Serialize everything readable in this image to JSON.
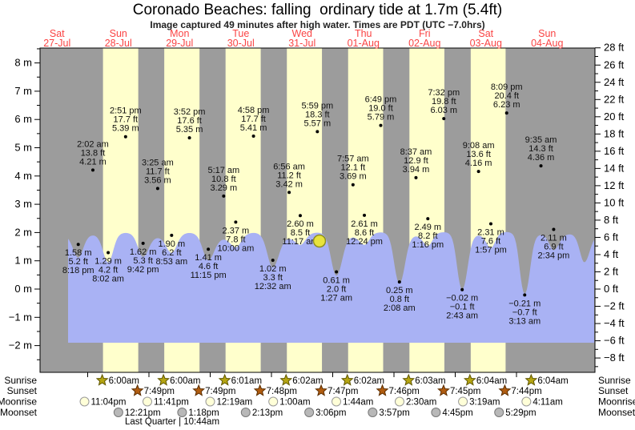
{
  "title": "Coronado Beaches: falling  ordinary tide at 1.7m (5.4ft)",
  "subtitle": "Image captured 49 minutes after high water. Times are PDT (UTC −7.0hrs)",
  "colors": {
    "band_night": "#9c9c9c",
    "band_day": "#ffffcc",
    "sea": "#a9b2f4",
    "current_marker_fill": "#e8e33c",
    "current_marker_stroke": "#8f8f1e",
    "day_label": "#fa4444",
    "axis_text": "#000000",
    "point_label_text": "#111111",
    "sunrise_star": "#b5a512",
    "sunset_star": "#b05c10",
    "moonrise_fill": "#ffffd8",
    "moonrise_stroke": "#9a9a9a",
    "moonset_fill": "#b8b8b8",
    "moonset_stroke": "#787878"
  },
  "chart_data": {
    "type": "area",
    "title": "Coronado Beaches tide heights",
    "ylabel_left": "meters",
    "ylabel_right": "feet",
    "ylim_m": [
      -2.95,
      8.5
    ],
    "y_axis_left_ticks": [
      "8 m",
      "7 m",
      "6 m",
      "5 m",
      "4 m",
      "3 m",
      "2 m",
      "1 m",
      "0 m",
      "−1 m",
      "−2 m"
    ],
    "y_axis_left_values": [
      8,
      7,
      6,
      5,
      4,
      3,
      2,
      1,
      0,
      -1,
      -2
    ],
    "y_axis_right_ticks": [
      "28 ft",
      "26 ft",
      "24 ft",
      "22 ft",
      "20 ft",
      "18 ft",
      "16 ft",
      "14 ft",
      "12 ft",
      "10 ft",
      "8 ft",
      "6 ft",
      "4 ft",
      "2 ft",
      "0 ft",
      "−2 ft",
      "−4 ft",
      "−6 ft",
      "−8 ft"
    ],
    "y_axis_right_values": [
      28,
      26,
      24,
      22,
      20,
      18,
      16,
      14,
      12,
      10,
      8,
      6,
      4,
      2,
      0,
      -2,
      -4,
      -6,
      -8
    ],
    "days": [
      {
        "weekday": "Sat",
        "date": "27-Jul"
      },
      {
        "weekday": "Sun",
        "date": "28-Jul"
      },
      {
        "weekday": "Mon",
        "date": "29-Jul"
      },
      {
        "weekday": "Tue",
        "date": "30-Jul"
      },
      {
        "weekday": "Wed",
        "date": "31-Jul"
      },
      {
        "weekday": "Thu",
        "date": "01-Aug"
      },
      {
        "weekday": "Fri",
        "date": "02-Aug"
      },
      {
        "weekday": "Sat",
        "date": "03-Aug"
      },
      {
        "weekday": "Sun",
        "date": "04-Aug"
      }
    ],
    "extremes": [
      {
        "day": 0,
        "hour": 20.3,
        "type": "low",
        "m": 1.58,
        "ft": 5.2,
        "time": "8:18 pm"
      },
      {
        "day": 1,
        "hour": 2.033,
        "type": "high",
        "m": 4.21,
        "ft": 13.8,
        "time": "2:02 am"
      },
      {
        "day": 1,
        "hour": 8.033,
        "type": "low",
        "m": 1.29,
        "ft": 4.2,
        "time": "8:02 am"
      },
      {
        "day": 1,
        "hour": 14.85,
        "type": "high",
        "m": 5.39,
        "ft": 17.7,
        "time": "2:51 pm"
      },
      {
        "day": 1,
        "hour": 21.7,
        "type": "low",
        "m": 1.62,
        "ft": 5.3,
        "time": "9:42 pm"
      },
      {
        "day": 2,
        "hour": 3.417,
        "type": "high",
        "m": 3.56,
        "ft": 11.7,
        "time": "3:25 am"
      },
      {
        "day": 2,
        "hour": 8.883,
        "type": "low",
        "m": 1.9,
        "ft": 6.2,
        "time": "8:53 am"
      },
      {
        "day": 2,
        "hour": 15.867,
        "type": "high",
        "m": 5.35,
        "ft": 17.6,
        "time": "3:52 pm"
      },
      {
        "day": 2,
        "hour": 23.25,
        "type": "low",
        "m": 1.41,
        "ft": 4.6,
        "time": "11:15 pm"
      },
      {
        "day": 3,
        "hour": 5.283,
        "type": "high",
        "m": 3.29,
        "ft": 10.8,
        "time": "5:17 am"
      },
      {
        "day": 3,
        "hour": 10.0,
        "type": "low",
        "m": 2.37,
        "ft": 7.8,
        "time": "10:00 am"
      },
      {
        "day": 3,
        "hour": 16.967,
        "type": "high",
        "m": 5.41,
        "ft": 17.7,
        "time": "4:58 pm"
      },
      {
        "day": 4,
        "hour": 0.533,
        "type": "low",
        "m": 1.02,
        "ft": 3.3,
        "time": "12:32 am"
      },
      {
        "day": 4,
        "hour": 6.933,
        "type": "high",
        "m": 3.42,
        "ft": 11.2,
        "time": "6:56 am"
      },
      {
        "day": 4,
        "hour": 11.283,
        "type": "low",
        "m": 2.6,
        "ft": 8.5,
        "time": "11:17 am"
      },
      {
        "day": 4,
        "hour": 17.983,
        "type": "high",
        "m": 5.57,
        "ft": 18.3,
        "time": "5:59 pm"
      },
      {
        "day": 5,
        "hour": 1.45,
        "type": "low",
        "m": 0.61,
        "ft": 2.0,
        "time": "1:27 am"
      },
      {
        "day": 5,
        "hour": 7.95,
        "type": "high",
        "m": 3.69,
        "ft": 12.1,
        "time": "7:57 am"
      },
      {
        "day": 5,
        "hour": 12.4,
        "type": "low",
        "m": 2.61,
        "ft": 8.6,
        "time": "12:24 pm"
      },
      {
        "day": 5,
        "hour": 18.817,
        "type": "high",
        "m": 5.79,
        "ft": 19.0,
        "time": "6:49 pm"
      },
      {
        "day": 6,
        "hour": 2.133,
        "type": "low",
        "m": 0.25,
        "ft": 0.8,
        "time": "2:08 am"
      },
      {
        "day": 6,
        "hour": 8.617,
        "type": "high",
        "m": 3.94,
        "ft": 12.9,
        "time": "8:37 am"
      },
      {
        "day": 6,
        "hour": 13.267,
        "type": "low",
        "m": 2.49,
        "ft": 8.2,
        "time": "1:16 pm"
      },
      {
        "day": 6,
        "hour": 19.533,
        "type": "high",
        "m": 6.03,
        "ft": 19.8,
        "time": "7:32 pm"
      },
      {
        "day": 7,
        "hour": 2.717,
        "type": "low",
        "m": -0.02,
        "ft": -0.1,
        "time": "2:43 am"
      },
      {
        "day": 7,
        "hour": 9.133,
        "type": "high",
        "m": 4.16,
        "ft": 13.6,
        "time": "9:08 am"
      },
      {
        "day": 7,
        "hour": 13.95,
        "type": "low",
        "m": 2.31,
        "ft": 7.6,
        "time": "1:57 pm"
      },
      {
        "day": 7,
        "hour": 20.15,
        "type": "high",
        "m": 6.23,
        "ft": 20.4,
        "time": "8:09 pm"
      },
      {
        "day": 8,
        "hour": 3.217,
        "type": "low",
        "m": -0.21,
        "ft": -0.7,
        "time": "3:13 am"
      },
      {
        "day": 8,
        "hour": 9.583,
        "type": "high",
        "m": 4.36,
        "ft": 14.3,
        "time": "9:35 am"
      },
      {
        "day": 8,
        "hour": 14.567,
        "type": "low",
        "m": 2.11,
        "ft": 6.9,
        "time": "2:34 pm"
      }
    ],
    "current_position": {
      "day": 4,
      "hour": 18.817,
      "height_m": 1.7,
      "height_ft": 5.4,
      "state": "falling"
    },
    "sun_moon_rows": [
      {
        "label": "Sunrise",
        "icon": "sunrise-star",
        "events": [
          {
            "day": 1,
            "hour": 6.0,
            "time": "6:00am"
          },
          {
            "day": 2,
            "hour": 6.0,
            "time": "6:00am"
          },
          {
            "day": 3,
            "hour": 6.017,
            "time": "6:01am"
          },
          {
            "day": 4,
            "hour": 6.033,
            "time": "6:02am"
          },
          {
            "day": 5,
            "hour": 6.033,
            "time": "6:02am"
          },
          {
            "day": 6,
            "hour": 6.05,
            "time": "6:03am"
          },
          {
            "day": 7,
            "hour": 6.067,
            "time": "6:04am"
          },
          {
            "day": 8,
            "hour": 6.067,
            "time": "6:04am"
          }
        ]
      },
      {
        "label": "Sunset",
        "icon": "sunset-star",
        "events": [
          {
            "day": 1,
            "hour": 19.817,
            "time": "7:49pm"
          },
          {
            "day": 2,
            "hour": 19.817,
            "time": "7:49pm"
          },
          {
            "day": 3,
            "hour": 19.8,
            "time": "7:48pm"
          },
          {
            "day": 4,
            "hour": 19.783,
            "time": "7:47pm"
          },
          {
            "day": 5,
            "hour": 19.767,
            "time": "7:46pm"
          },
          {
            "day": 6,
            "hour": 19.75,
            "time": "7:45pm"
          },
          {
            "day": 7,
            "hour": 19.733,
            "time": "7:44pm"
          }
        ]
      },
      {
        "label": "Moonrise",
        "icon": "moonrise-circle",
        "events": [
          {
            "day": 0,
            "hour": 23.067,
            "time": "11:04pm"
          },
          {
            "day": 1,
            "hour": 23.683,
            "time": "11:41pm"
          },
          {
            "day": 3,
            "hour": 0.317,
            "time": "12:19am"
          },
          {
            "day": 4,
            "hour": 1.0,
            "time": "1:00am"
          },
          {
            "day": 5,
            "hour": 1.733,
            "time": "1:44am"
          },
          {
            "day": 6,
            "hour": 2.5,
            "time": "2:30am"
          },
          {
            "day": 7,
            "hour": 3.317,
            "time": "3:19am"
          },
          {
            "day": 8,
            "hour": 4.183,
            "time": "4:11am"
          }
        ]
      },
      {
        "label": "Moonset",
        "icon": "moonset-circle",
        "events": [
          {
            "day": 1,
            "hour": 12.35,
            "time": "12:21pm"
          },
          {
            "day": 2,
            "hour": 13.3,
            "time": "1:18pm"
          },
          {
            "day": 3,
            "hour": 14.217,
            "time": "2:13pm"
          },
          {
            "day": 4,
            "hour": 15.1,
            "time": "3:06pm"
          },
          {
            "day": 5,
            "hour": 15.95,
            "time": "3:57pm"
          },
          {
            "day": 6,
            "hour": 16.75,
            "time": "4:45pm"
          },
          {
            "day": 7,
            "hour": 17.483,
            "time": "5:29pm"
          }
        ]
      }
    ],
    "moon_phase": "Last Quarter | 10:44am"
  }
}
